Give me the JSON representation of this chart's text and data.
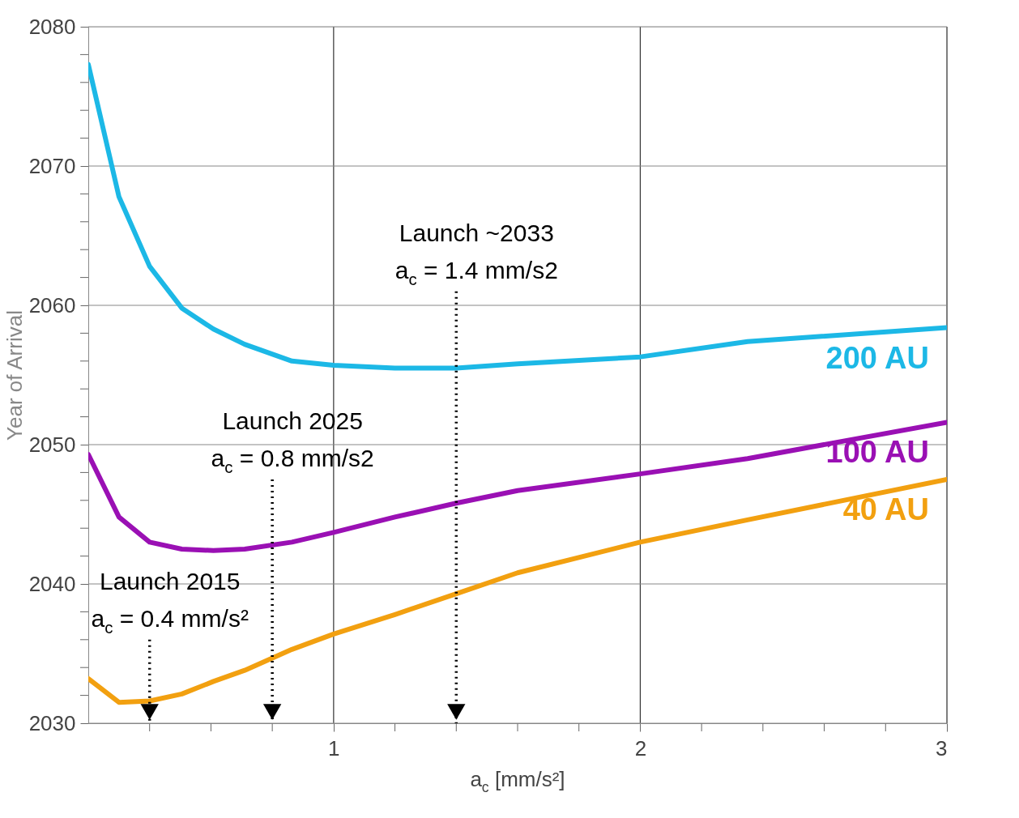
{
  "chart_data": {
    "type": "line",
    "xlabel": "a$_{c}$ [mm/s²]",
    "ylabel": "Year of Arrival",
    "x": [
      0.2,
      0.3,
      0.4,
      0.505,
      0.608,
      0.71,
      0.864,
      1.0,
      1.2,
      1.4,
      1.6,
      2.0,
      2.35,
      3.0
    ],
    "series": [
      {
        "name": "200 AU",
        "color": "#1cb8e6",
        "values": [
          2077.3,
          2067.8,
          2062.8,
          2059.8,
          2058.3,
          2057.2,
          2056.0,
          2055.7,
          2055.5,
          2055.5,
          2055.8,
          2056.3,
          2057.4,
          2058.4
        ]
      },
      {
        "name": "100 AU",
        "color": "#9a10b4",
        "values": [
          2049.3,
          2044.8,
          2043.0,
          2042.5,
          2042.4,
          2042.5,
          2043.0,
          2043.7,
          2044.8,
          2045.8,
          2046.7,
          2047.9,
          2049.0,
          2051.6
        ]
      },
      {
        "name": "40 AU",
        "color": "#f2a010",
        "values": [
          2033.2,
          2031.5,
          2031.6,
          2032.1,
          2033.0,
          2033.8,
          2035.3,
          2036.4,
          2037.8,
          2039.3,
          2040.8,
          2043.0,
          2044.6,
          2047.5
        ]
      }
    ],
    "xlim": [
      0.2,
      3
    ],
    "ylim": [
      2030,
      2080
    ],
    "xticks": [
      {
        "value": 0.4,
        "label": null
      },
      {
        "value": 0.6,
        "label": null
      },
      {
        "value": 0.8,
        "label": null
      },
      1,
      {
        "value": 1.2,
        "label": null
      },
      {
        "value": 1.4,
        "label": null
      },
      {
        "value": 1.6,
        "label": null
      },
      {
        "value": 1.8,
        "label": null
      },
      2,
      {
        "value": 2.2,
        "label": null
      },
      {
        "value": 2.4,
        "label": null
      },
      {
        "value": 2.6,
        "label": null
      },
      {
        "value": 2.8,
        "label": null
      },
      3
    ],
    "yticks": [
      2030,
      {
        "value": 2032,
        "label": null
      },
      {
        "value": 2034,
        "label": null
      },
      {
        "value": 2036,
        "label": null
      },
      {
        "value": 2038,
        "label": null
      },
      2040,
      {
        "value": 2042,
        "label": null
      },
      {
        "value": 2044,
        "label": null
      },
      {
        "value": 2046,
        "label": null
      },
      {
        "value": 2048,
        "label": null
      },
      2050,
      {
        "value": 2052,
        "label": null
      },
      {
        "value": 2054,
        "label": null
      },
      {
        "value": 2056,
        "label": null
      },
      {
        "value": 2058,
        "label": null
      },
      2060,
      {
        "value": 2062,
        "label": null
      },
      {
        "value": 2064,
        "label": null
      },
      {
        "value": 2066,
        "label": null
      },
      {
        "value": 2068,
        "label": null
      },
      2070,
      {
        "value": 2072,
        "label": null
      },
      {
        "value": 2074,
        "label": null
      },
      {
        "value": 2076,
        "label": null
      },
      {
        "value": 2078,
        "label": null
      },
      2080
    ],
    "grid": true,
    "legend": false,
    "marker": "none",
    "line_style": "solid",
    "ref_lines": [
      {
        "axis": "x",
        "value": 0.4,
        "label": "Launch 2015\na$_{c}$ = 0.4 mm/s²",
        "color": "#000000",
        "line_style": "dotted"
      },
      {
        "axis": "x",
        "value": 0.8,
        "label": "Launch 2025\na$_{c}$ = 0.8 mm/s2",
        "color": "#000000",
        "line_style": "dotted"
      },
      {
        "axis": "x",
        "value": 1.4,
        "label": "Launch ~2033\na$_{c}$ = 1.4 mm/s2",
        "color": "#000000",
        "line_style": "dotted"
      }
    ]
  }
}
